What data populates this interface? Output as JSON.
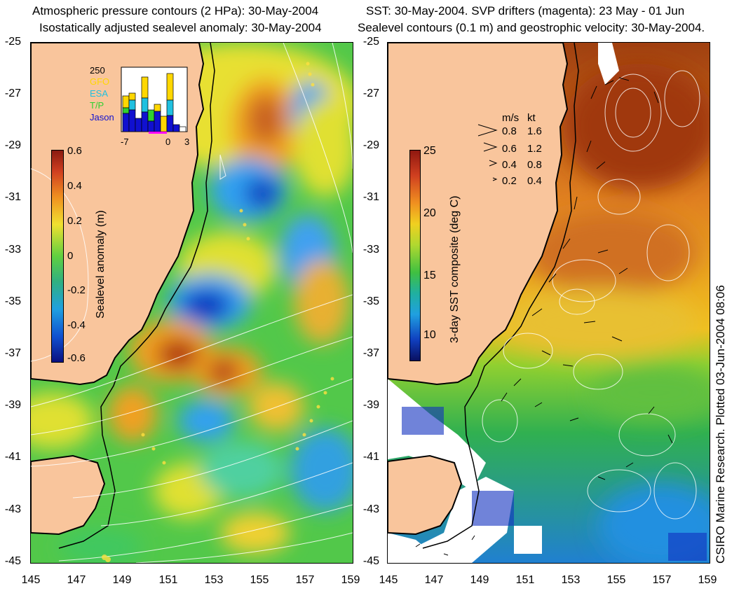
{
  "left_panel": {
    "title_line1": "Atmospheric pressure contours (2 HPa): 30-May-2004",
    "title_line2": "Isostatically adjusted sealevel anomaly: 30-May-2004",
    "colorbar": {
      "label": "Sealevel anomaly (m)",
      "ticks": [
        "0.6",
        "0.4",
        "0.2",
        "0",
        "-0.2",
        "-0.4",
        "-0.6"
      ],
      "range": [
        -0.6,
        0.6
      ]
    },
    "inset": {
      "ymax_label": "250",
      "legend": [
        {
          "name": "GFO",
          "color": "#ffd700"
        },
        {
          "name": "ESA",
          "color": "#20c0e0"
        },
        {
          "name": "T/P",
          "color": "#30d030"
        },
        {
          "name": "Jason",
          "color": "#1010d0"
        }
      ],
      "xticks": [
        "-7",
        "0",
        "3"
      ]
    }
  },
  "right_panel": {
    "title_line1": "SST: 30-May-2004. SVP drifters (magenta): 23 May - 01 Jun",
    "title_line2": "Sealevel contours (0.1 m) and geostrophic velocity: 30-May-2004.",
    "colorbar": {
      "label": "3-day SST composite (deg C)",
      "ticks": [
        "25",
        "20",
        "15",
        "10"
      ],
      "range": [
        8,
        25
      ]
    },
    "velocity_legend": {
      "header_ms": "m/s",
      "header_kt": "kt",
      "rows": [
        {
          "ms": "0.8",
          "kt": "1.6"
        },
        {
          "ms": "0.6",
          "kt": "1.2"
        },
        {
          "ms": "0.4",
          "kt": "0.8"
        },
        {
          "ms": "0.2",
          "kt": "0.4"
        }
      ]
    },
    "credit": "CSIRO Marine Research. Plotted 03-Jun-2004 08:06"
  },
  "axes": {
    "lat_ticks": [
      "-25",
      "-27",
      "-29",
      "-31",
      "-33",
      "-35",
      "-37",
      "-39",
      "-41",
      "-43",
      "-45"
    ],
    "lon_ticks": [
      "145",
      "147",
      "149",
      "151",
      "153",
      "155",
      "157",
      "159"
    ]
  },
  "colors": {
    "land": "#f9c59c",
    "coast": "#000000"
  }
}
